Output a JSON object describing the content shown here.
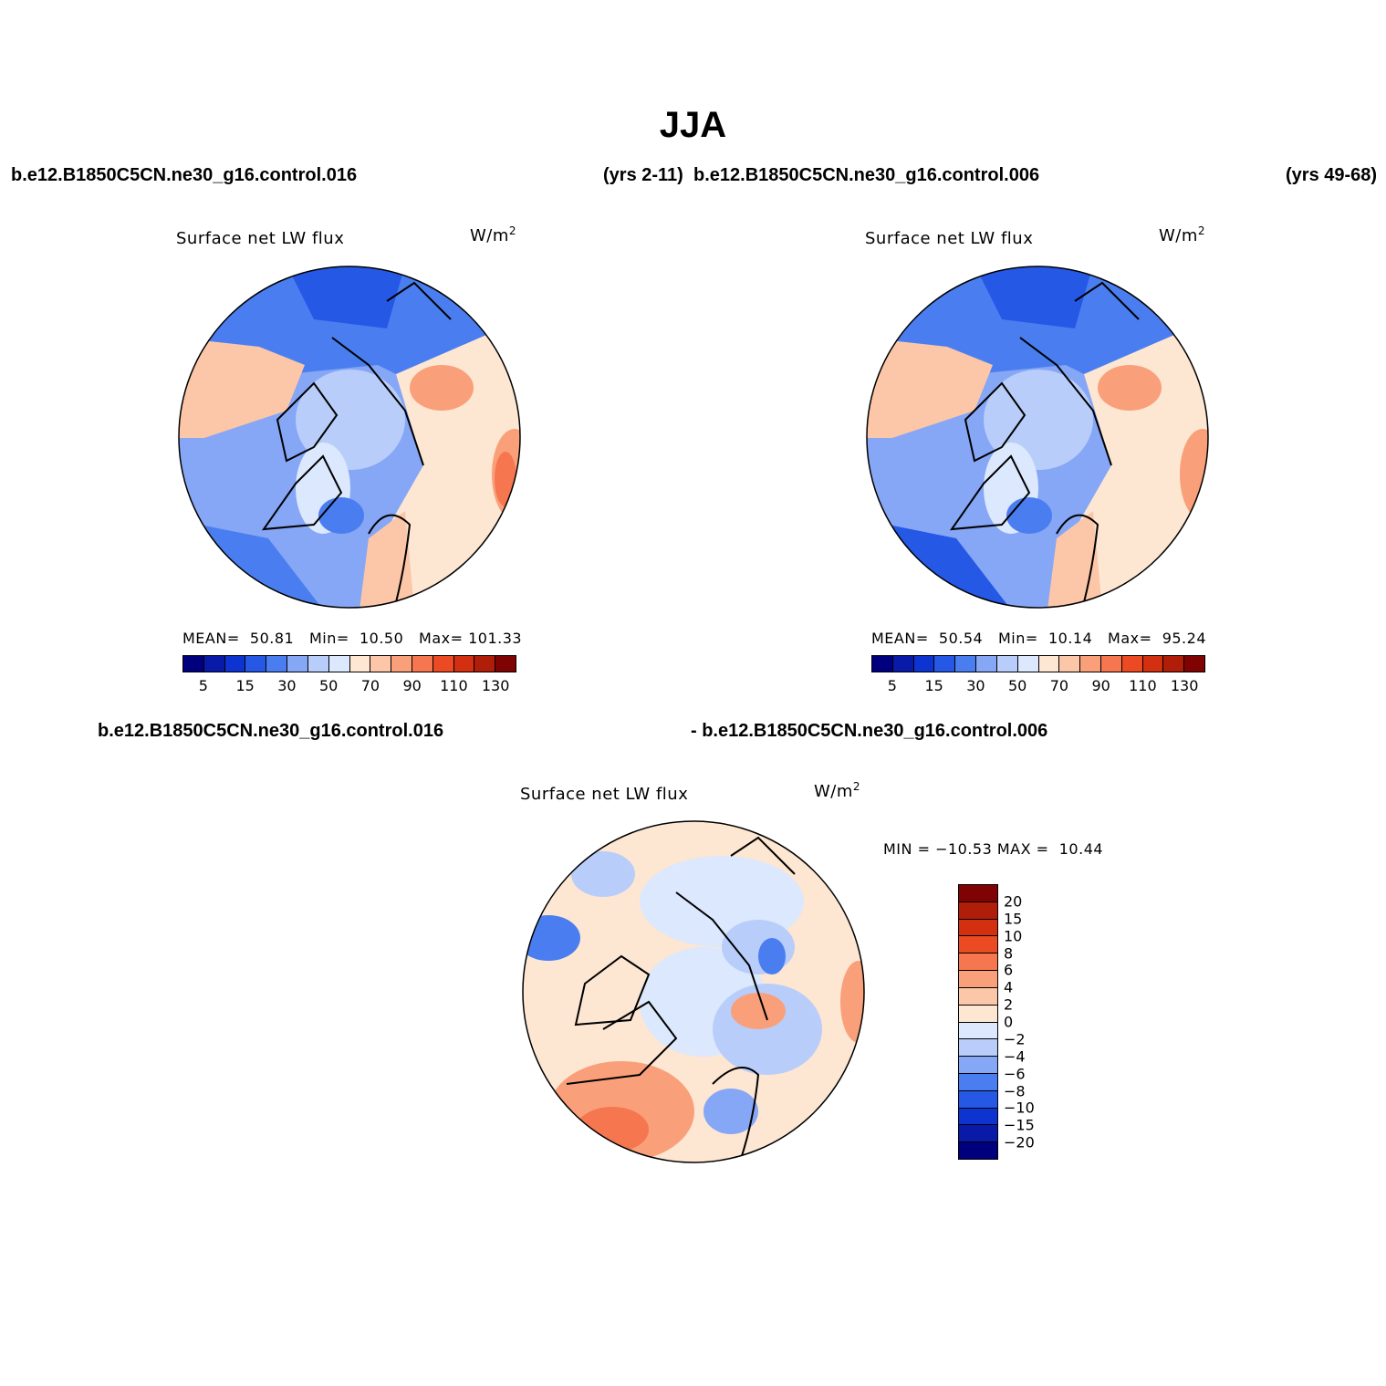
{
  "title": "JJA",
  "header": {
    "case1": "b.e12.B1850C5CN.ne30_g16.control.016",
    "case1_years": "(yrs 2-11)",
    "case2": "b.e12.B1850C5CN.ne30_g16.control.006",
    "case2_years": "(yrs 49-68)"
  },
  "panels": [
    {
      "title": "Surface net LW flux",
      "units_base": "W/m",
      "units_exp": "2",
      "stats": {
        "mean_label": "MEAN=",
        "mean": "50.81",
        "min_label": "Min=",
        "min": "10.50",
        "max_label": "Max=",
        "max": "101.33"
      }
    },
    {
      "title": "Surface net LW flux",
      "units_base": "W/m",
      "units_exp": "2",
      "stats": {
        "mean_label": "MEAN=",
        "mean": "50.54",
        "min_label": "Min=",
        "min": "10.14",
        "max_label": "Max=",
        "max": "95.24"
      }
    }
  ],
  "abs_colorbar": {
    "colors": [
      "#00007f",
      "#0a1aa8",
      "#0d33d0",
      "#2658e6",
      "#4a7ef0",
      "#86a6f6",
      "#b9cdfa",
      "#dbe8fd",
      "#fde6d2",
      "#fcc6a8",
      "#f9a07a",
      "#f5764f",
      "#ec4a22",
      "#d23010",
      "#b01d08",
      "#7f0303"
    ],
    "tick_labels": [
      "5",
      "15",
      "30",
      "50",
      "70",
      "90",
      "110",
      "130"
    ]
  },
  "diff": {
    "label_left": "b.e12.B1850C5CN.ne30_g16.control.016",
    "label_right": "- b.e12.B1850C5CN.ne30_g16.control.006",
    "title": "Surface net LW flux",
    "units_base": "W/m",
    "units_exp": "2",
    "minmax": "MIN = −10.53 MAX =  10.44",
    "colorbar_colors_top_to_bottom": [
      "#7f0303",
      "#b01d08",
      "#d23010",
      "#ec4a22",
      "#f5764f",
      "#f9a07a",
      "#fcc6a8",
      "#fde6d2",
      "#dbe8fd",
      "#b9cdfa",
      "#86a6f6",
      "#4a7ef0",
      "#2658e6",
      "#0d33d0",
      "#0a1aa8",
      "#00007f"
    ],
    "tick_labels_top_to_bottom": [
      "20",
      "15",
      "10",
      "8",
      "6",
      "4",
      "2",
      "0",
      "−2",
      "−4",
      "−6",
      "−8",
      "−10",
      "−15",
      "−20"
    ]
  },
  "colors": {
    "water_blue": "#86a6f6",
    "ice_light_blue": "#b9cdfa",
    "warm_peach": "#fde6d2",
    "deep_blue": "#2658e6"
  }
}
